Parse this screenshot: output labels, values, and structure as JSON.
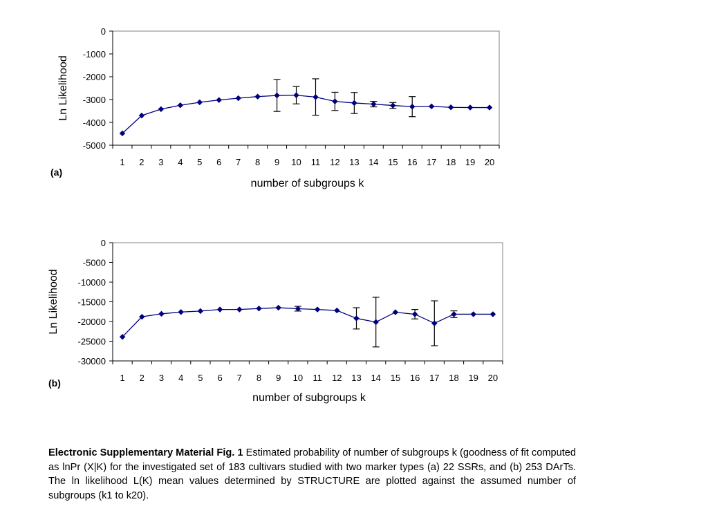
{
  "panels": [
    {
      "label": "(a)"
    },
    {
      "label": "(b)"
    }
  ],
  "caption": {
    "lead": "Electronic Supplementary Material Fig. 1",
    "text": " Estimated probability of number of subgroups k (goodness of fit computed as lnPr (X|K) for the investigated set of 183 cultivars studied with two marker types (a) 22 SSRs, and (b) 253 DArTs. The ln likelihood L(K) mean values determined by STRUCTURE are plotted against the assumed number of subgroups (k1 to k20)."
  },
  "colors": {
    "series": "#00007f",
    "error_bars": "#000000",
    "axes": "#808080"
  },
  "chart_data": [
    {
      "type": "line",
      "panel": "(a)",
      "xlabel": "number of subgroups k",
      "ylabel": "Ln Likelihood",
      "x": [
        1,
        2,
        3,
        4,
        5,
        6,
        7,
        8,
        9,
        10,
        11,
        12,
        13,
        14,
        15,
        16,
        17,
        18,
        19,
        20
      ],
      "ylim": [
        -5000,
        0
      ],
      "yticks": [
        0,
        -1000,
        -2000,
        -3000,
        -4000,
        -5000
      ],
      "series": [
        {
          "values": [
            -4480,
            -3700,
            -3420,
            -3250,
            -3120,
            -3020,
            -2940,
            -2870,
            -2820,
            -2810,
            -2890,
            -3080,
            -3150,
            -3200,
            -3260,
            -3310,
            -3300,
            -3340,
            -3350,
            -3350
          ],
          "errors": [
            0,
            0,
            0,
            0,
            0,
            0,
            0,
            0,
            700,
            380,
            800,
            400,
            460,
            120,
            130,
            440,
            0,
            0,
            0,
            0
          ]
        }
      ],
      "grid": false,
      "legend": "none"
    },
    {
      "type": "line",
      "panel": "(b)",
      "xlabel": "number of subgroups k",
      "ylabel": "Ln Likelihood",
      "x": [
        1,
        2,
        3,
        4,
        5,
        6,
        7,
        8,
        9,
        10,
        11,
        12,
        13,
        14,
        15,
        16,
        17,
        18,
        19,
        20
      ],
      "ylim": [
        -30000,
        0
      ],
      "yticks": [
        0,
        -5000,
        -10000,
        -15000,
        -20000,
        -25000,
        -30000
      ],
      "series": [
        {
          "values": [
            -23900,
            -18800,
            -18050,
            -17600,
            -17350,
            -16950,
            -16950,
            -16700,
            -16500,
            -16750,
            -16950,
            -17200,
            -19200,
            -20150,
            -17650,
            -18150,
            -20450,
            -18150,
            -18150,
            -18150
          ],
          "errors": [
            0,
            0,
            0,
            0,
            0,
            0,
            0,
            0,
            0,
            600,
            0,
            0,
            2700,
            6300,
            0,
            1200,
            5700,
            850,
            0,
            0
          ]
        }
      ],
      "grid": false,
      "legend": "none"
    }
  ]
}
